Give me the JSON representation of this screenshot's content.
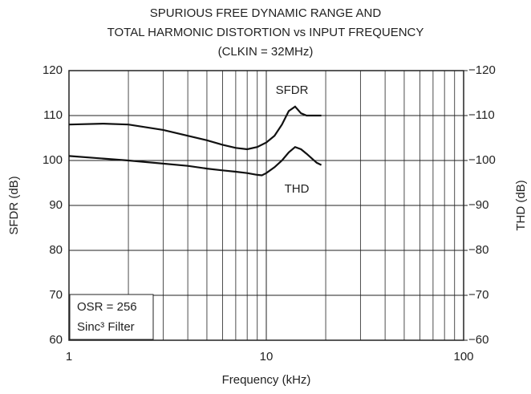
{
  "chart_data": {
    "type": "line",
    "title": [
      "SPURIOUS FREE DYNAMIC RANGE AND",
      "TOTAL HARMONIC DISTORTION vs INPUT FREQUENCY",
      "(CLKIN = 32MHz)"
    ],
    "x_label": "Frequency (kHz)",
    "y_label": "SFDR (dB)",
    "y2_label": "THD (dB)",
    "xscale": "log",
    "grid": true,
    "xlim": [
      1,
      100
    ],
    "xticks": [
      1,
      10,
      100
    ],
    "ylim": [
      60,
      120
    ],
    "yticks": [
      60,
      70,
      80,
      90,
      100,
      110,
      120
    ],
    "y2lim": [
      -60,
      -120
    ],
    "y2ticks": [
      {
        "value": -60,
        "label": "−60"
      },
      {
        "value": -70,
        "label": "−70"
      },
      {
        "value": -80,
        "label": "−80"
      },
      {
        "value": -90,
        "label": "−90"
      },
      {
        "value": -100,
        "label": "−100"
      },
      {
        "value": -110,
        "label": "−110"
      },
      {
        "value": -120,
        "label": "−120"
      }
    ],
    "series": [
      {
        "name": "SFDR",
        "color": "#111111",
        "x": [
          1,
          1.5,
          2,
          3,
          4,
          5,
          6,
          7,
          8,
          9,
          10,
          11,
          12,
          13,
          14,
          15,
          16,
          19
        ],
        "values": [
          108,
          108.2,
          108,
          106.8,
          105.5,
          104.5,
          103.5,
          102.8,
          102.5,
          103,
          104,
          105.5,
          108,
          111,
          112,
          110.5,
          110,
          110
        ]
      },
      {
        "name": "THD",
        "color": "#111111",
        "axis": "y2",
        "x": [
          1,
          2,
          3,
          4,
          5,
          6,
          7,
          8,
          9,
          9.5,
          10,
          11,
          12,
          13,
          14,
          15,
          16,
          18,
          19
        ],
        "values": [
          -101,
          -100,
          -99.3,
          -98.8,
          -98.2,
          -97.8,
          -97.5,
          -97.2,
          -96.8,
          -96.7,
          -97.2,
          -98.5,
          -100,
          -101.8,
          -103,
          -102.5,
          -101.5,
          -99.5,
          -99
        ]
      }
    ],
    "annotations": [
      "OSR = 256",
      "Sinc³ Filter"
    ]
  }
}
